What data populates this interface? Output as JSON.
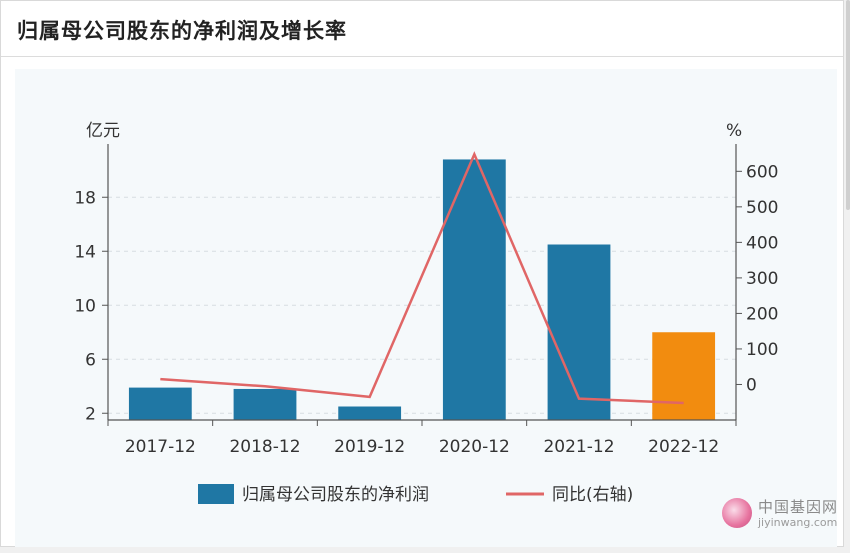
{
  "header": {
    "title": "归属母公司股东的净利润及增长率"
  },
  "chart_data": {
    "type": "bar",
    "categories": [
      "2017-12",
      "2018-12",
      "2019-12",
      "2020-12",
      "2021-12",
      "2022-12"
    ],
    "left_unit": "亿元",
    "right_unit": "%",
    "left_ticks": [
      2,
      6,
      10,
      14,
      18
    ],
    "right_ticks": [
      0,
      100,
      200,
      300,
      400,
      500,
      600
    ],
    "ylim_left": [
      1.5,
      21.5
    ],
    "ylim_right": [
      -100,
      660
    ],
    "series": [
      {
        "name": "归属母公司股东的净利润",
        "kind": "bar",
        "axis": "left",
        "values": [
          3.9,
          3.8,
          2.5,
          20.8,
          14.5,
          8.0
        ],
        "colors": [
          "#1f77a4",
          "#1f77a4",
          "#1f77a4",
          "#1f77a4",
          "#1f77a4",
          "#f28c0f"
        ]
      },
      {
        "name": "同比(右轴)",
        "kind": "line",
        "axis": "right",
        "values": [
          15,
          -5,
          -35,
          648,
          -40,
          -52
        ],
        "color": "#e06666"
      }
    ],
    "grid": true,
    "legend_position": "bottom"
  },
  "watermark": {
    "cn": "中国基因网",
    "en": "jiyinwang.com"
  }
}
